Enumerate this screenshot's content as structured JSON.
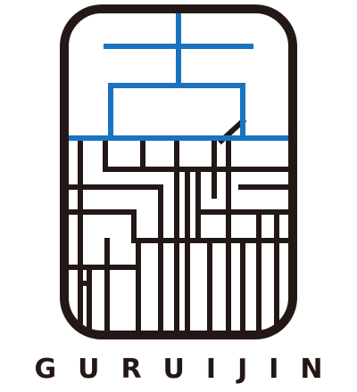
{
  "logo": {
    "wordmark": "GURUIJIN",
    "colors": {
      "frame": "#231815",
      "accent": "#1a73c1",
      "background": "#ffffff"
    }
  }
}
